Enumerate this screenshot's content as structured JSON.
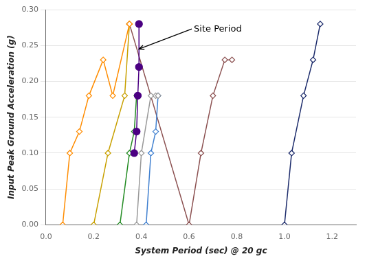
{
  "chart_data": {
    "type": "line",
    "xlabel": "System Period (sec) @ 20 gc",
    "ylabel": "Input Peak Ground Acceleration (g)",
    "xlim": [
      0,
      1.3
    ],
    "ylim": [
      0,
      0.3
    ],
    "xticks": [
      {
        "value": 0,
        "label": "0.0"
      },
      0.2,
      0.4,
      0.6,
      0.8,
      {
        "value": 1.0,
        "label": "1.0"
      },
      1.2
    ],
    "yticks": [
      {
        "value": 0,
        "label": "0.00"
      },
      0.05,
      {
        "value": 0.1,
        "label": "0.10"
      },
      0.15,
      {
        "value": 0.2,
        "label": "0.20"
      },
      0.25,
      {
        "value": 0.3,
        "label": "0.30"
      }
    ],
    "grid": "y",
    "series": [
      {
        "color": "#FF8C00",
        "marker": "open_diamond",
        "x": [
          0.07,
          0.1,
          0.14,
          0.18,
          0.24,
          0.28,
          0.35,
          0.35
        ],
        "values": [
          0.0,
          0.1,
          0.13,
          0.18,
          0.23,
          0.18,
          0.28,
          0.28
        ]
      },
      {
        "color": "#C8A000",
        "marker": "open_diamond",
        "x": [
          0.2,
          0.26,
          0.33,
          0.35
        ],
        "values": [
          0.0,
          0.1,
          0.18,
          0.28
        ]
      },
      {
        "color": "#228B22",
        "marker": "open_diamond",
        "x": [
          0.31,
          0.35,
          0.37,
          0.38
        ],
        "values": [
          0.0,
          0.1,
          0.13,
          0.18
        ]
      },
      {
        "color": "#4B0082",
        "marker": "circle",
        "x": [
          0.37,
          0.38,
          0.385,
          0.39,
          0.39
        ],
        "values": [
          0.1,
          0.13,
          0.18,
          0.22,
          0.28
        ]
      },
      {
        "color": "#999999",
        "marker": "open_diamond",
        "x": [
          0.38,
          0.4,
          0.44,
          0.46,
          0.47
        ],
        "values": [
          0.0,
          0.1,
          0.18,
          0.18,
          0.18
        ]
      },
      {
        "color": "#4080D0",
        "marker": "open_diamond",
        "x": [
          0.42,
          0.44,
          0.46,
          0.47
        ],
        "values": [
          0.0,
          0.1,
          0.13,
          0.18
        ]
      },
      {
        "color": "#8B5050",
        "marker": "open_diamond",
        "x": [
          0.35,
          0.6,
          0.65,
          0.7,
          0.75,
          0.78
        ],
        "values": [
          0.28,
          0.0,
          0.1,
          0.18,
          0.23,
          0.23
        ]
      },
      {
        "color": "#1C2B6B",
        "marker": "open_diamond",
        "x": [
          1.0,
          1.03,
          1.08,
          1.12,
          1.15
        ],
        "values": [
          0.0,
          0.1,
          0.18,
          0.23,
          0.28
        ]
      }
    ],
    "annotations": [
      {
        "text": "Site Period",
        "xy": [
          0.39,
          0.245
        ],
        "xytext": [
          0.62,
          0.273
        ]
      }
    ]
  }
}
